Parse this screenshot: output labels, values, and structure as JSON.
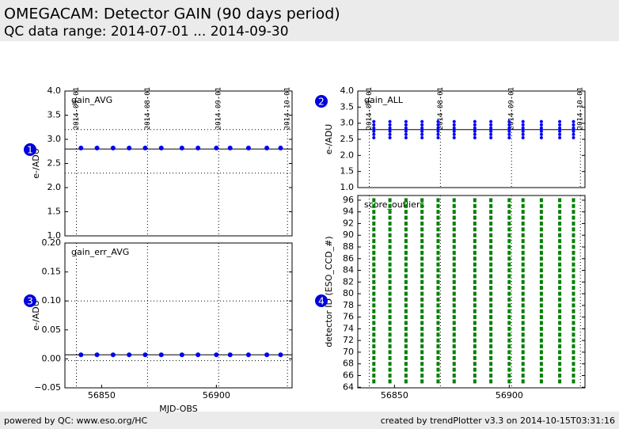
{
  "header": {
    "title": "OMEGACAM: Detector GAIN (90 days period)",
    "subtitle": "QC data range: 2014-07-01 ... 2014-09-30"
  },
  "footer": {
    "left": "powered by QC: www.eso.org/HC",
    "right": "created by trendPlotter v3.3 on 2014-10-15T03:31:16"
  },
  "chart_data": [
    {
      "type": "scatter",
      "title": "gain_AVG",
      "badge": "1",
      "ylabel": "e-/ADU",
      "color": "#0000ff",
      "x": [
        56841,
        56848,
        56855,
        56862,
        56869,
        56876,
        56885,
        56892,
        56900,
        56906,
        56914,
        56922,
        56928
      ],
      "values": [
        2.82,
        2.82,
        2.82,
        2.82,
        2.82,
        2.82,
        2.82,
        2.82,
        2.82,
        2.82,
        2.82,
        2.82,
        2.82
      ],
      "mean_line": 2.8,
      "limit_lines": [
        3.2,
        2.3
      ],
      "xlim": [
        56834,
        56933
      ],
      "ylim": [
        1.0,
        4.0
      ],
      "yticks": [
        {
          "value": 1.0,
          "label": "1.0"
        },
        {
          "value": 1.5,
          "label": "1.5"
        },
        {
          "value": 2.0,
          "label": "2.0"
        },
        {
          "value": 2.5,
          "label": "2.5"
        },
        {
          "value": 3.0,
          "label": "3.0"
        },
        {
          "value": 3.5,
          "label": "3.5"
        },
        {
          "value": 4.0,
          "label": "4.0"
        }
      ],
      "date_ticks": [
        {
          "value": 56839,
          "label": "2014-07-01"
        },
        {
          "value": 56870,
          "label": "2014-08-01"
        },
        {
          "value": 56901,
          "label": "2014-09-01"
        },
        {
          "value": 56931,
          "label": "2014-10-01"
        }
      ]
    },
    {
      "type": "scatter",
      "title": "gain_ALL",
      "badge": "2",
      "ylabel": "e-/ADU",
      "color": "#0000ff",
      "x": [
        56841,
        56848,
        56855,
        56862,
        56869,
        56876,
        56885,
        56892,
        56900,
        56906,
        56914,
        56922,
        56928
      ],
      "values": [
        [
          2.55,
          2.65,
          2.75,
          2.85,
          2.95,
          3.05
        ],
        [
          2.55,
          2.65,
          2.75,
          2.85,
          2.95,
          3.05
        ],
        [
          2.55,
          2.65,
          2.75,
          2.85,
          2.95,
          3.05
        ],
        [
          2.55,
          2.65,
          2.75,
          2.85,
          2.95,
          3.05
        ],
        [
          2.55,
          2.65,
          2.75,
          2.85,
          2.95,
          3.05
        ],
        [
          2.55,
          2.65,
          2.75,
          2.85,
          2.95,
          3.05
        ],
        [
          2.55,
          2.65,
          2.75,
          2.85,
          2.95,
          3.05
        ],
        [
          2.55,
          2.65,
          2.75,
          2.85,
          2.95,
          3.05
        ],
        [
          2.55,
          2.65,
          2.75,
          2.85,
          2.95,
          3.05
        ],
        [
          2.55,
          2.65,
          2.75,
          2.85,
          2.95,
          3.05
        ],
        [
          2.55,
          2.65,
          2.75,
          2.85,
          2.95,
          3.05
        ],
        [
          2.55,
          2.65,
          2.75,
          2.85,
          2.95,
          3.05
        ],
        [
          2.55,
          2.65,
          2.75,
          2.85,
          2.95,
          3.05
        ]
      ],
      "mean_line": 2.8,
      "xlim": [
        56834,
        56933
      ],
      "ylim": [
        1.0,
        4.0
      ],
      "yticks": [
        {
          "value": 1.0,
          "label": "1.0"
        },
        {
          "value": 1.5,
          "label": "1.5"
        },
        {
          "value": 2.0,
          "label": "2.0"
        },
        {
          "value": 2.5,
          "label": "2.5"
        },
        {
          "value": 3.0,
          "label": "3.0"
        },
        {
          "value": 3.5,
          "label": "3.5"
        },
        {
          "value": 4.0,
          "label": "4.0"
        }
      ],
      "date_ticks": [
        {
          "value": 56839,
          "label": "2014-07-01"
        },
        {
          "value": 56870,
          "label": "2014-08-01"
        },
        {
          "value": 56901,
          "label": "2014-09-01"
        },
        {
          "value": 56931,
          "label": "2014-10-01"
        }
      ]
    },
    {
      "type": "scatter",
      "title": "gain_err_AVG",
      "badge": "3",
      "ylabel": "e-/ADU",
      "xlabel": "MJD-OBS",
      "color": "#0000ff",
      "x": [
        56841,
        56848,
        56855,
        56862,
        56869,
        56876,
        56885,
        56892,
        56900,
        56906,
        56914,
        56922,
        56928
      ],
      "values": [
        0.007,
        0.007,
        0.007,
        0.007,
        0.007,
        0.007,
        0.007,
        0.007,
        0.007,
        0.007,
        0.007,
        0.007,
        0.007
      ],
      "mean_line": 0.007,
      "limit_lines": [
        0.1,
        -0.003
      ],
      "xlim": [
        56834,
        56933
      ],
      "ylim": [
        -0.05,
        0.2
      ],
      "yticks": [
        {
          "value": -0.05,
          "label": "−0.05"
        },
        {
          "value": 0.0,
          "label": "0.00"
        },
        {
          "value": 0.05,
          "label": "0.05"
        },
        {
          "value": 0.1,
          "label": "0.10"
        },
        {
          "value": 0.15,
          "label": "0.15"
        },
        {
          "value": 0.2,
          "label": "0.20"
        }
      ],
      "xticks": [
        56850,
        56900
      ]
    },
    {
      "type": "strip",
      "title": "score_outliers",
      "badge": "4",
      "ylabel": "detector ID (ESO_CCD_#)",
      "color": "#008000",
      "x": [
        56841,
        56848,
        56855,
        56862,
        56869,
        56876,
        56885,
        56892,
        56900,
        56906,
        56914,
        56922,
        56928
      ],
      "detector_ids": [
        65,
        66,
        67,
        68,
        69,
        70,
        71,
        72,
        73,
        74,
        75,
        76,
        77,
        78,
        79,
        80,
        81,
        82,
        83,
        84,
        85,
        86,
        87,
        88,
        89,
        90,
        91,
        92,
        93,
        94,
        95,
        96
      ],
      "xlim": [
        56834,
        56933
      ],
      "ylim": [
        63.9,
        96.8
      ],
      "yticks": [
        64,
        66,
        68,
        70,
        72,
        74,
        76,
        78,
        80,
        82,
        84,
        86,
        88,
        90,
        92,
        94,
        96
      ],
      "xticks": [
        56850,
        56900
      ]
    }
  ]
}
